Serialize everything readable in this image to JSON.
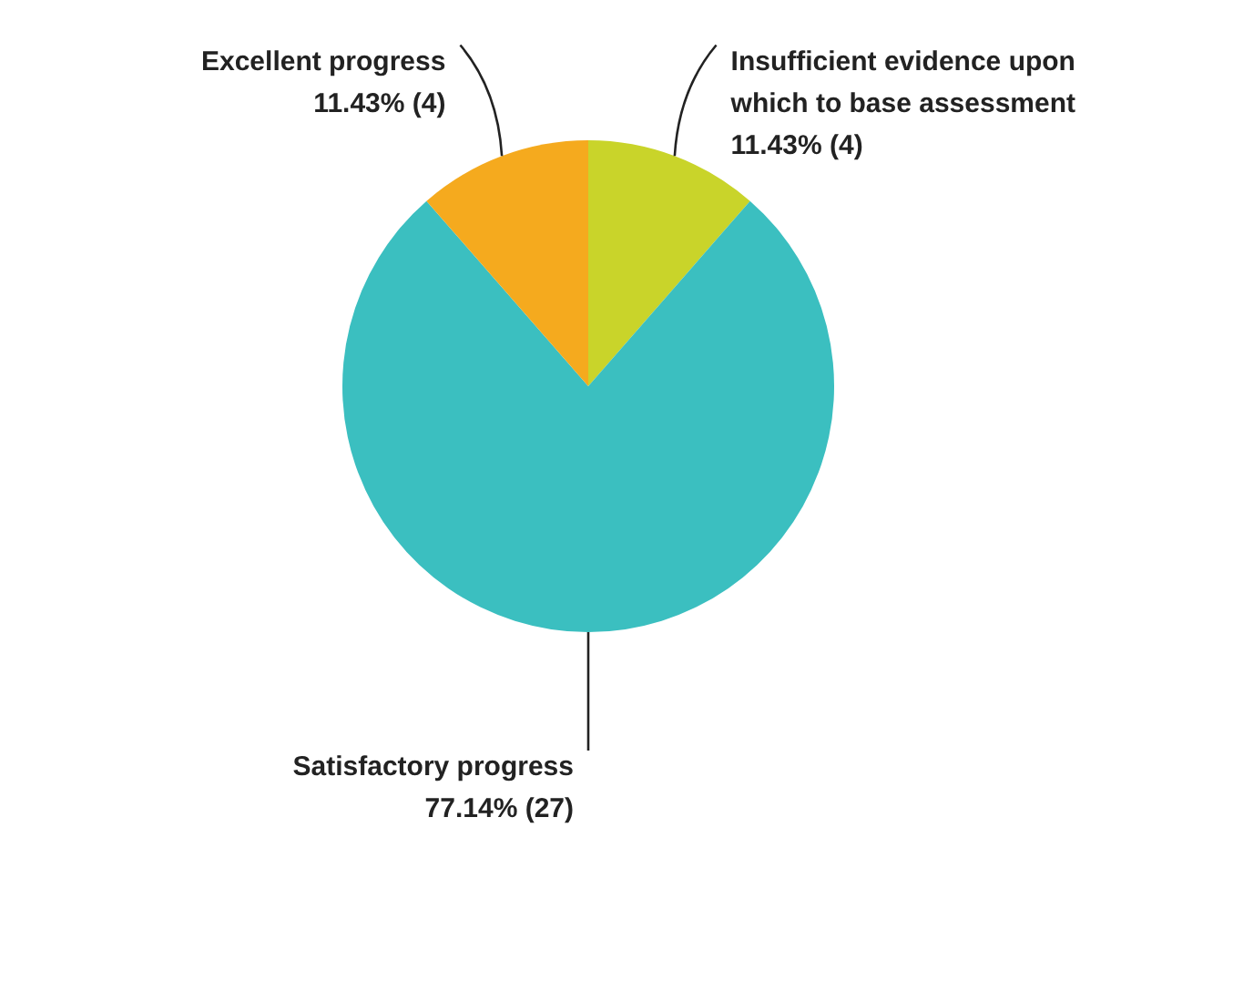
{
  "chart_data": {
    "type": "pie",
    "categories": [
      "Insufficient evidence upon which to base assessment",
      "Satisfactory progress",
      "Excellent progress"
    ],
    "values": [
      4,
      27,
      4
    ],
    "colors": [
      "#c9d42a",
      "#3bbfc0",
      "#f5aa1e"
    ],
    "value_labels": [
      "11.43% (4)",
      "77.14% (27)",
      "11.43% (4)"
    ],
    "legend": false
  }
}
